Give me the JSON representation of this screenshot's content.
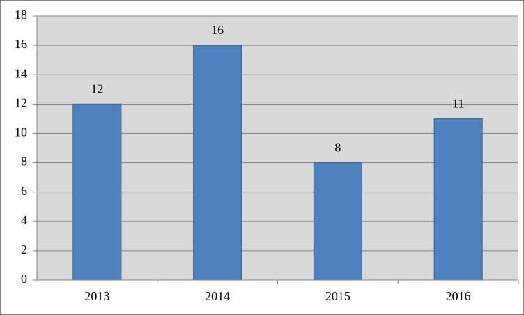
{
  "chart_data": {
    "type": "bar",
    "categories": [
      "2013",
      "2014",
      "2015",
      "2016"
    ],
    "values": [
      12,
      16,
      8,
      11
    ],
    "color": "#4f81bd",
    "ylim": [
      0,
      18
    ],
    "yticks": [
      0,
      2,
      4,
      6,
      8,
      10,
      12,
      14,
      16,
      18
    ],
    "grid": true,
    "data_labels": true
  }
}
